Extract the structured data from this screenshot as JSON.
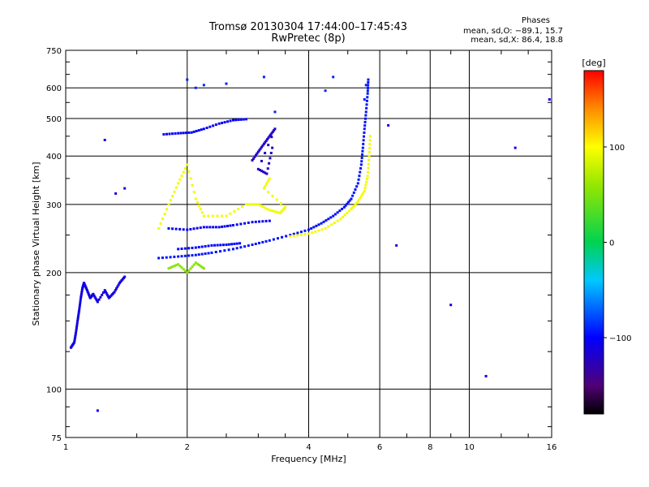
{
  "header": {
    "title_line1": "Tromsø 20130304 17:44:00–17:45:43",
    "title_line2": "RwPretec (8p)"
  },
  "phases": {
    "title": "Phases",
    "o_line": "mean, sd,O: −89.1, 15.7",
    "x_line": "mean, sd,X:  86.4, 18.8"
  },
  "colorbar": {
    "unit": "[deg]",
    "ticks": [
      {
        "value": 100,
        "label": "100"
      },
      {
        "value": 0,
        "label": "0"
      },
      {
        "value": -100,
        "label": "−100"
      }
    ],
    "range": [
      -180,
      180
    ]
  },
  "chart_data": {
    "type": "scatter",
    "xlabel": "Frequency [MHz]",
    "ylabel": "Stationary phase Virtual Height [km]",
    "xscale": "log",
    "yscale": "log",
    "xlim": [
      1,
      16
    ],
    "ylim": [
      75,
      750
    ],
    "xticks": [
      {
        "value": 1,
        "label": "1"
      },
      {
        "value": 2,
        "label": "2"
      },
      {
        "value": 4,
        "label": "4"
      },
      {
        "value": 6,
        "label": "6"
      },
      {
        "value": 8,
        "label": "8"
      },
      {
        "value": 10,
        "label": "10"
      },
      {
        "value": 16,
        "label": "16"
      }
    ],
    "yticks": [
      {
        "value": 75,
        "label": "75"
      },
      {
        "value": 100,
        "label": "100"
      },
      {
        "value": 200,
        "label": "200"
      },
      {
        "value": 300,
        "label": "300"
      },
      {
        "value": 400,
        "label": "400"
      },
      {
        "value": 500,
        "label": "500"
      },
      {
        "value": 600,
        "label": "600"
      },
      {
        "value": 750,
        "label": "750"
      }
    ],
    "grid": true,
    "traces": [
      {
        "name": "lowF",
        "phase": -110,
        "points": [
          [
            1.03,
            128
          ],
          [
            1.05,
            132
          ],
          [
            1.06,
            140
          ],
          [
            1.07,
            150
          ],
          [
            1.08,
            160
          ],
          [
            1.09,
            172
          ],
          [
            1.1,
            182
          ],
          [
            1.11,
            188
          ],
          [
            1.13,
            180
          ],
          [
            1.15,
            172
          ],
          [
            1.17,
            176
          ],
          [
            1.2,
            168
          ],
          [
            1.25,
            180
          ],
          [
            1.28,
            172
          ],
          [
            1.32,
            178
          ],
          [
            1.36,
            188
          ],
          [
            1.4,
            195
          ]
        ]
      },
      {
        "name": "O_trace",
        "phase": -95,
        "points": [
          [
            1.7,
            218
          ],
          [
            1.9,
            220
          ],
          [
            2.1,
            222
          ],
          [
            2.3,
            225
          ],
          [
            2.6,
            230
          ],
          [
            2.9,
            236
          ],
          [
            3.2,
            242
          ],
          [
            3.6,
            250
          ],
          [
            4.0,
            258
          ],
          [
            4.3,
            268
          ],
          [
            4.6,
            280
          ],
          [
            4.9,
            295
          ],
          [
            5.1,
            310
          ],
          [
            5.3,
            340
          ],
          [
            5.4,
            380
          ],
          [
            5.45,
            420
          ],
          [
            5.5,
            470
          ],
          [
            5.55,
            520
          ],
          [
            5.6,
            580
          ],
          [
            5.62,
            630
          ]
        ]
      },
      {
        "name": "X_trace",
        "phase": 95,
        "points": [
          [
            3.6,
            248
          ],
          [
            4.0,
            252
          ],
          [
            4.4,
            260
          ],
          [
            4.8,
            275
          ],
          [
            5.1,
            292
          ],
          [
            5.3,
            305
          ],
          [
            5.5,
            325
          ],
          [
            5.6,
            355
          ],
          [
            5.65,
            400
          ],
          [
            5.68,
            450
          ]
        ]
      },
      {
        "name": "F_upper",
        "phase": -100,
        "points": [
          [
            1.75,
            455
          ],
          [
            1.9,
            458
          ],
          [
            2.05,
            460
          ],
          [
            2.2,
            470
          ],
          [
            2.4,
            485
          ],
          [
            2.6,
            495
          ],
          [
            2.8,
            498
          ]
        ]
      },
      {
        "name": "F_middle",
        "phase": -105,
        "points": [
          [
            1.8,
            260
          ],
          [
            2.0,
            258
          ],
          [
            2.2,
            262
          ],
          [
            2.4,
            262
          ],
          [
            2.6,
            265
          ],
          [
            2.9,
            270
          ],
          [
            3.2,
            272
          ]
        ]
      },
      {
        "name": "F_lower",
        "phase": -100,
        "points": [
          [
            1.9,
            230
          ],
          [
            2.1,
            232
          ],
          [
            2.3,
            235
          ],
          [
            2.5,
            236
          ],
          [
            2.7,
            238
          ]
        ]
      },
      {
        "name": "spread_high",
        "phase": -120,
        "points": [
          [
            2.9,
            390
          ],
          [
            3.0,
            410
          ],
          [
            3.1,
            430
          ],
          [
            3.2,
            450
          ],
          [
            3.3,
            470
          ],
          [
            3.0,
            370
          ],
          [
            3.15,
            360
          ],
          [
            3.25,
            420
          ]
        ]
      },
      {
        "name": "yellow_mid",
        "phase": 95,
        "points": [
          [
            1.7,
            260
          ],
          [
            1.8,
            300
          ],
          [
            1.9,
            340
          ],
          [
            2.0,
            380
          ],
          [
            2.1,
            310
          ],
          [
            2.2,
            280
          ],
          [
            2.5,
            280
          ],
          [
            2.8,
            300
          ],
          [
            3.0,
            300
          ],
          [
            3.2,
            290
          ],
          [
            3.4,
            285
          ],
          [
            3.5,
            295
          ],
          [
            3.1,
            330
          ],
          [
            3.2,
            350
          ]
        ]
      },
      {
        "name": "greenish_low",
        "phase": 55,
        "points": [
          [
            1.8,
            205
          ],
          [
            1.9,
            210
          ],
          [
            2.0,
            200
          ],
          [
            2.1,
            212
          ],
          [
            2.2,
            205
          ]
        ]
      },
      {
        "name": "upper_scatter",
        "phase": -90,
        "points": [
          [
            2.0,
            630
          ],
          [
            2.1,
            600
          ],
          [
            2.2,
            610
          ],
          [
            2.5,
            615
          ],
          [
            3.1,
            640
          ],
          [
            3.3,
            520
          ],
          [
            4.4,
            590
          ],
          [
            4.6,
            640
          ],
          [
            5.5,
            560
          ],
          [
            5.55,
            610
          ]
        ]
      },
      {
        "name": "isolated",
        "phase": -110,
        "points": [
          [
            1.2,
            88
          ],
          [
            1.25,
            440
          ],
          [
            1.33,
            320
          ],
          [
            1.4,
            330
          ],
          [
            6.3,
            480
          ],
          [
            6.6,
            235
          ],
          [
            9.0,
            165
          ],
          [
            11.0,
            108
          ],
          [
            13.0,
            420
          ],
          [
            15.8,
            560
          ]
        ]
      }
    ]
  }
}
